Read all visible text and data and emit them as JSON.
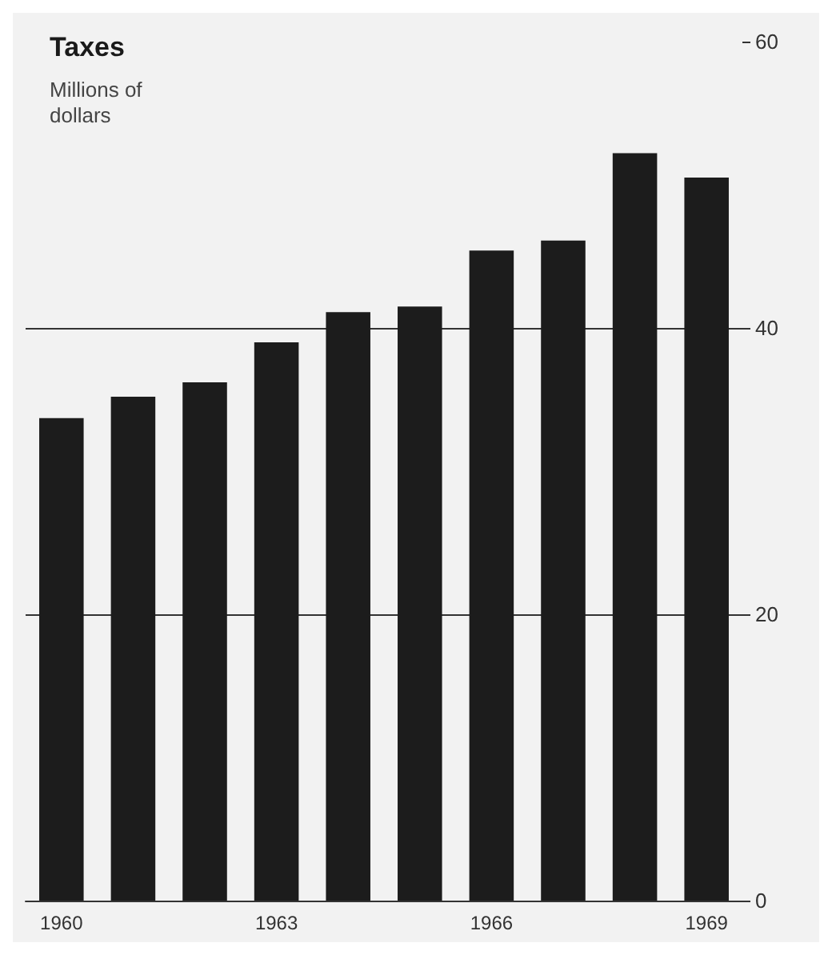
{
  "chart_data": {
    "type": "bar",
    "title": "Taxes",
    "subtitle": "Millions of dollars",
    "categories": [
      "1960",
      null,
      null,
      "1963",
      null,
      null,
      "1966",
      null,
      null,
      "1969"
    ],
    "values": [
      33.7,
      35.2,
      36.2,
      39.0,
      41.1,
      41.5,
      45.4,
      46.1,
      52.2,
      50.5
    ],
    "color": "#1c1c1c",
    "ylim": [
      0,
      60
    ],
    "yticks": [
      0,
      20,
      40,
      60
    ],
    "grid": "y"
  }
}
